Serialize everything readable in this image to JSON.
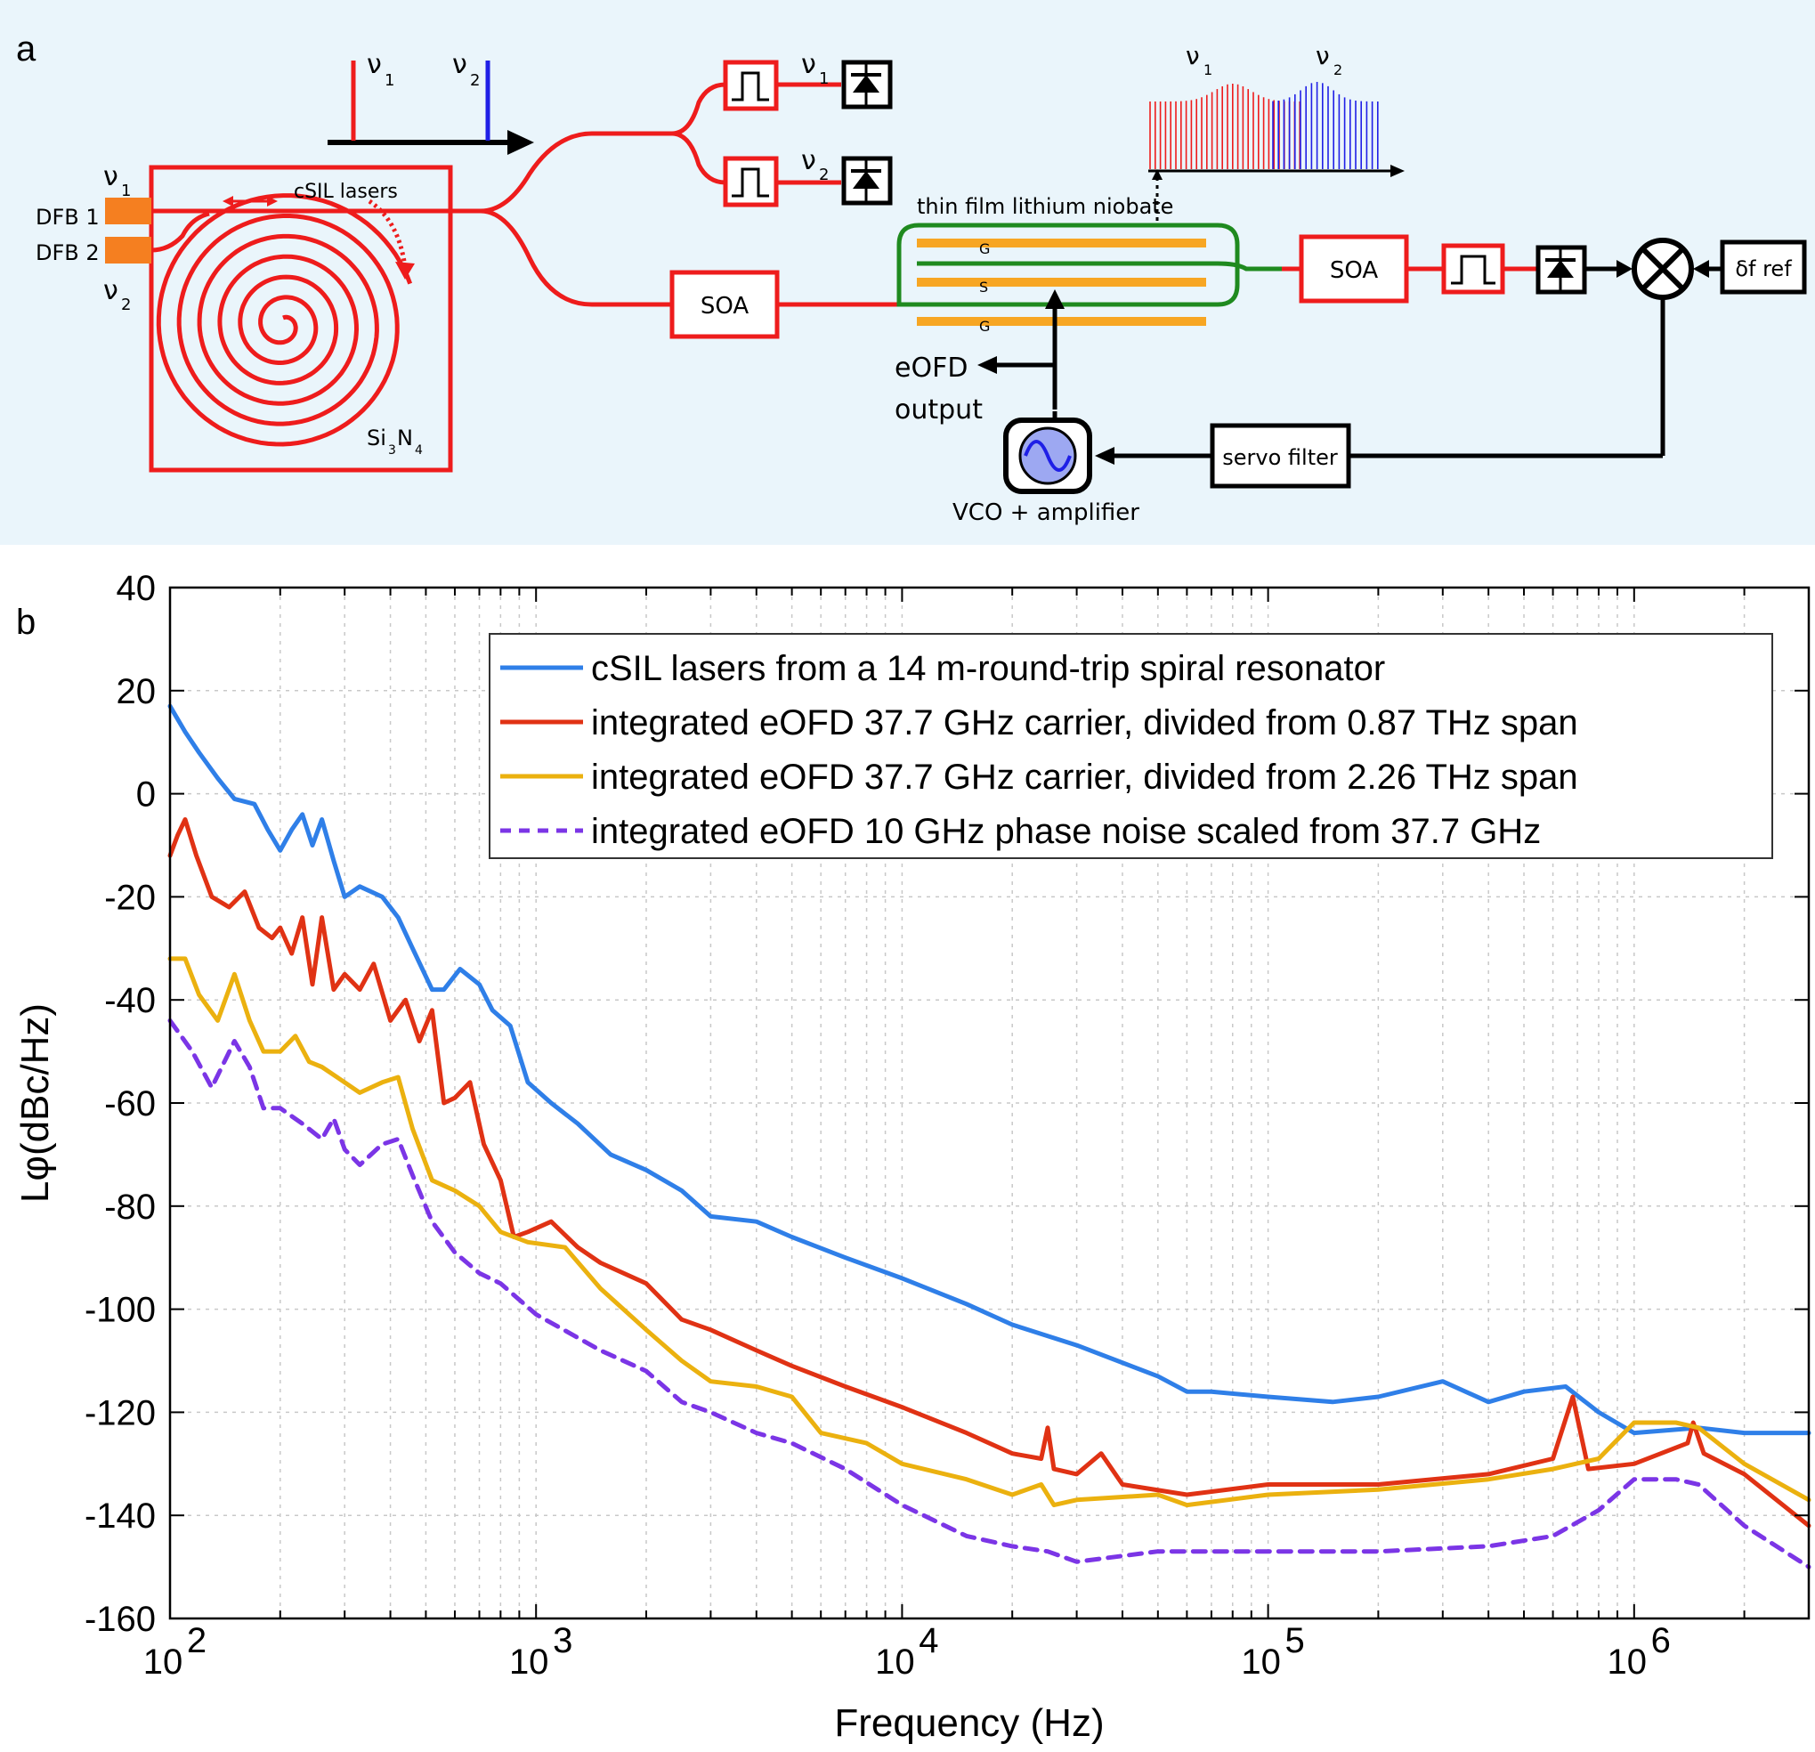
{
  "panel_a": {
    "label": "a",
    "nu1": "ν",
    "nu1_sub": "1",
    "nu2": "ν",
    "nu2_sub": "2",
    "dfb1": "DFB 1",
    "dfb2": "DFB 2",
    "csil_lasers": "cSIL lasers",
    "si3n4_main": "Si",
    "si3n4_sub1": "3",
    "si3n4_mid": "N",
    "si3n4_sub2": "4",
    "soa": "SOA",
    "tfln": "thin film lithium niobate",
    "electrode_g": "G",
    "electrode_s": "S",
    "eofd": "eOFD",
    "output": "output",
    "vco": "VCO +  amplifier",
    "servo": "servo filter",
    "df_ref": "δf ref",
    "colors": {
      "red": "#ee1c1c",
      "blue": "#1f1fe6",
      "green": "#1f8a1f",
      "orange": "#f7a623",
      "dfb": "#f57f20",
      "bg": "#eaf5fb"
    }
  },
  "panel_b": {
    "label": "b"
  },
  "chart_data": {
    "type": "line",
    "xscale": "log",
    "xlabel": "Frequency (Hz)",
    "ylabel": "Lφ(dBc/Hz)",
    "xlim": [
      100,
      3000000
    ],
    "ylim": [
      -160,
      40
    ],
    "yticks": [
      40,
      20,
      0,
      -20,
      -40,
      -60,
      -80,
      -100,
      -120,
      -140,
      -160
    ],
    "yticklabels": [
      "40",
      "20",
      "0",
      "-20",
      "-40",
      "-60",
      "-80",
      "-100",
      "-120",
      "-140",
      "-160"
    ],
    "xticks": [
      {
        "value": 100,
        "base": "10",
        "exp": "2"
      },
      {
        "value": 1000,
        "base": "10",
        "exp": "3"
      },
      {
        "value": 10000,
        "base": "10",
        "exp": "4"
      },
      {
        "value": 100000,
        "base": "10",
        "exp": "5"
      },
      {
        "value": 1000000,
        "base": "10",
        "exp": "6"
      }
    ],
    "grid": true,
    "legend_position": "top-right",
    "series": [
      {
        "name": "cSIL lasers from a 14 m-round-trip spiral resonator",
        "color": "#2f7fe8",
        "style": "solid",
        "points": [
          [
            100,
            17
          ],
          [
            110,
            12
          ],
          [
            120,
            8
          ],
          [
            135,
            3
          ],
          [
            150,
            -1
          ],
          [
            170,
            -2
          ],
          [
            185,
            -7
          ],
          [
            200,
            -11
          ],
          [
            215,
            -7
          ],
          [
            230,
            -4
          ],
          [
            245,
            -10
          ],
          [
            260,
            -5
          ],
          [
            280,
            -13
          ],
          [
            300,
            -20
          ],
          [
            330,
            -18
          ],
          [
            380,
            -20
          ],
          [
            420,
            -24
          ],
          [
            460,
            -30
          ],
          [
            520,
            -38
          ],
          [
            560,
            -38
          ],
          [
            620,
            -34
          ],
          [
            700,
            -37
          ],
          [
            760,
            -42
          ],
          [
            850,
            -45
          ],
          [
            950,
            -56
          ],
          [
            1100,
            -60
          ],
          [
            1300,
            -64
          ],
          [
            1600,
            -70
          ],
          [
            2000,
            -73
          ],
          [
            2500,
            -77
          ],
          [
            3000,
            -82
          ],
          [
            4000,
            -83
          ],
          [
            5000,
            -86
          ],
          [
            7000,
            -90
          ],
          [
            10000,
            -94
          ],
          [
            15000,
            -99
          ],
          [
            20000,
            -103
          ],
          [
            30000,
            -107
          ],
          [
            50000,
            -113
          ],
          [
            60000,
            -116
          ],
          [
            70000,
            -116
          ],
          [
            100000,
            -117
          ],
          [
            150000,
            -118
          ],
          [
            200000,
            -117
          ],
          [
            300000,
            -114
          ],
          [
            400000,
            -118
          ],
          [
            500000,
            -116
          ],
          [
            650000,
            -115
          ],
          [
            800000,
            -120
          ],
          [
            1000000,
            -124
          ],
          [
            1500000,
            -123
          ],
          [
            2000000,
            -124
          ],
          [
            3000000,
            -124
          ]
        ]
      },
      {
        "name": "integrated eOFD 37.7 GHz carrier, divided from 0.87 THz span",
        "color": "#e03214",
        "style": "solid",
        "points": [
          [
            100,
            -12
          ],
          [
            105,
            -8
          ],
          [
            110,
            -5
          ],
          [
            118,
            -12
          ],
          [
            130,
            -20
          ],
          [
            145,
            -22
          ],
          [
            160,
            -19
          ],
          [
            175,
            -26
          ],
          [
            190,
            -28
          ],
          [
            200,
            -26
          ],
          [
            215,
            -31
          ],
          [
            230,
            -24
          ],
          [
            245,
            -37
          ],
          [
            260,
            -24
          ],
          [
            280,
            -38
          ],
          [
            300,
            -35
          ],
          [
            330,
            -38
          ],
          [
            360,
            -33
          ],
          [
            400,
            -44
          ],
          [
            440,
            -40
          ],
          [
            480,
            -48
          ],
          [
            520,
            -42
          ],
          [
            560,
            -60
          ],
          [
            600,
            -59
          ],
          [
            660,
            -56
          ],
          [
            720,
            -68
          ],
          [
            800,
            -75
          ],
          [
            870,
            -86
          ],
          [
            950,
            -85
          ],
          [
            1100,
            -83
          ],
          [
            1300,
            -88
          ],
          [
            1500,
            -91
          ],
          [
            2000,
            -95
          ],
          [
            2500,
            -102
          ],
          [
            3000,
            -104
          ],
          [
            4000,
            -108
          ],
          [
            5000,
            -111
          ],
          [
            7000,
            -115
          ],
          [
            10000,
            -119
          ],
          [
            15000,
            -124
          ],
          [
            20000,
            -128
          ],
          [
            24000,
            -129
          ],
          [
            25000,
            -123
          ],
          [
            26000,
            -131
          ],
          [
            30000,
            -132
          ],
          [
            35000,
            -128
          ],
          [
            40000,
            -134
          ],
          [
            60000,
            -136
          ],
          [
            100000,
            -134
          ],
          [
            200000,
            -134
          ],
          [
            400000,
            -132
          ],
          [
            600000,
            -129
          ],
          [
            680000,
            -117
          ],
          [
            750000,
            -131
          ],
          [
            1000000,
            -130
          ],
          [
            1400000,
            -126
          ],
          [
            1450000,
            -122
          ],
          [
            1550000,
            -128
          ],
          [
            2000000,
            -132
          ],
          [
            3000000,
            -142
          ]
        ]
      },
      {
        "name": "integrated eOFD 37.7 GHz carrier, divided from 2.26 THz span",
        "color": "#ebb10f",
        "style": "solid",
        "points": [
          [
            100,
            -32
          ],
          [
            110,
            -32
          ],
          [
            120,
            -39
          ],
          [
            135,
            -44
          ],
          [
            150,
            -35
          ],
          [
            165,
            -44
          ],
          [
            180,
            -50
          ],
          [
            200,
            -50
          ],
          [
            220,
            -47
          ],
          [
            240,
            -52
          ],
          [
            260,
            -53
          ],
          [
            300,
            -56
          ],
          [
            330,
            -58
          ],
          [
            380,
            -56
          ],
          [
            420,
            -55
          ],
          [
            460,
            -65
          ],
          [
            520,
            -75
          ],
          [
            600,
            -77
          ],
          [
            700,
            -80
          ],
          [
            800,
            -85
          ],
          [
            950,
            -87
          ],
          [
            1200,
            -88
          ],
          [
            1500,
            -96
          ],
          [
            2000,
            -104
          ],
          [
            2500,
            -110
          ],
          [
            3000,
            -114
          ],
          [
            4000,
            -115
          ],
          [
            5000,
            -117
          ],
          [
            6000,
            -124
          ],
          [
            8000,
            -126
          ],
          [
            10000,
            -130
          ],
          [
            15000,
            -133
          ],
          [
            20000,
            -136
          ],
          [
            24000,
            -134
          ],
          [
            26000,
            -138
          ],
          [
            30000,
            -137
          ],
          [
            50000,
            -136
          ],
          [
            60000,
            -138
          ],
          [
            100000,
            -136
          ],
          [
            200000,
            -135
          ],
          [
            400000,
            -133
          ],
          [
            600000,
            -131
          ],
          [
            800000,
            -129
          ],
          [
            1000000,
            -122
          ],
          [
            1300000,
            -122
          ],
          [
            1500000,
            -123
          ],
          [
            2000000,
            -130
          ],
          [
            3000000,
            -137
          ]
        ]
      },
      {
        "name": "integrated eOFD 10 GHz phase noise scaled from 37.7 GHz",
        "color": "#7b35e6",
        "style": "dashed",
        "points": [
          [
            100,
            -44
          ],
          [
            115,
            -50
          ],
          [
            130,
            -57
          ],
          [
            150,
            -48
          ],
          [
            165,
            -53
          ],
          [
            180,
            -61
          ],
          [
            200,
            -61
          ],
          [
            230,
            -64
          ],
          [
            260,
            -67
          ],
          [
            280,
            -63
          ],
          [
            300,
            -69
          ],
          [
            330,
            -72
          ],
          [
            380,
            -68
          ],
          [
            420,
            -67
          ],
          [
            460,
            -74
          ],
          [
            520,
            -83
          ],
          [
            600,
            -89
          ],
          [
            700,
            -93
          ],
          [
            800,
            -95
          ],
          [
            1000,
            -101
          ],
          [
            1500,
            -108
          ],
          [
            2000,
            -112
          ],
          [
            2500,
            -118
          ],
          [
            3000,
            -120
          ],
          [
            4000,
            -124
          ],
          [
            5000,
            -126
          ],
          [
            7000,
            -131
          ],
          [
            10000,
            -138
          ],
          [
            15000,
            -144
          ],
          [
            20000,
            -146
          ],
          [
            25000,
            -147
          ],
          [
            30000,
            -149
          ],
          [
            50000,
            -147
          ],
          [
            100000,
            -147
          ],
          [
            200000,
            -147
          ],
          [
            400000,
            -146
          ],
          [
            600000,
            -144
          ],
          [
            800000,
            -139
          ],
          [
            1000000,
            -133
          ],
          [
            1300000,
            -133
          ],
          [
            1500000,
            -134
          ],
          [
            2000000,
            -142
          ],
          [
            3000000,
            -150
          ]
        ]
      }
    ]
  }
}
